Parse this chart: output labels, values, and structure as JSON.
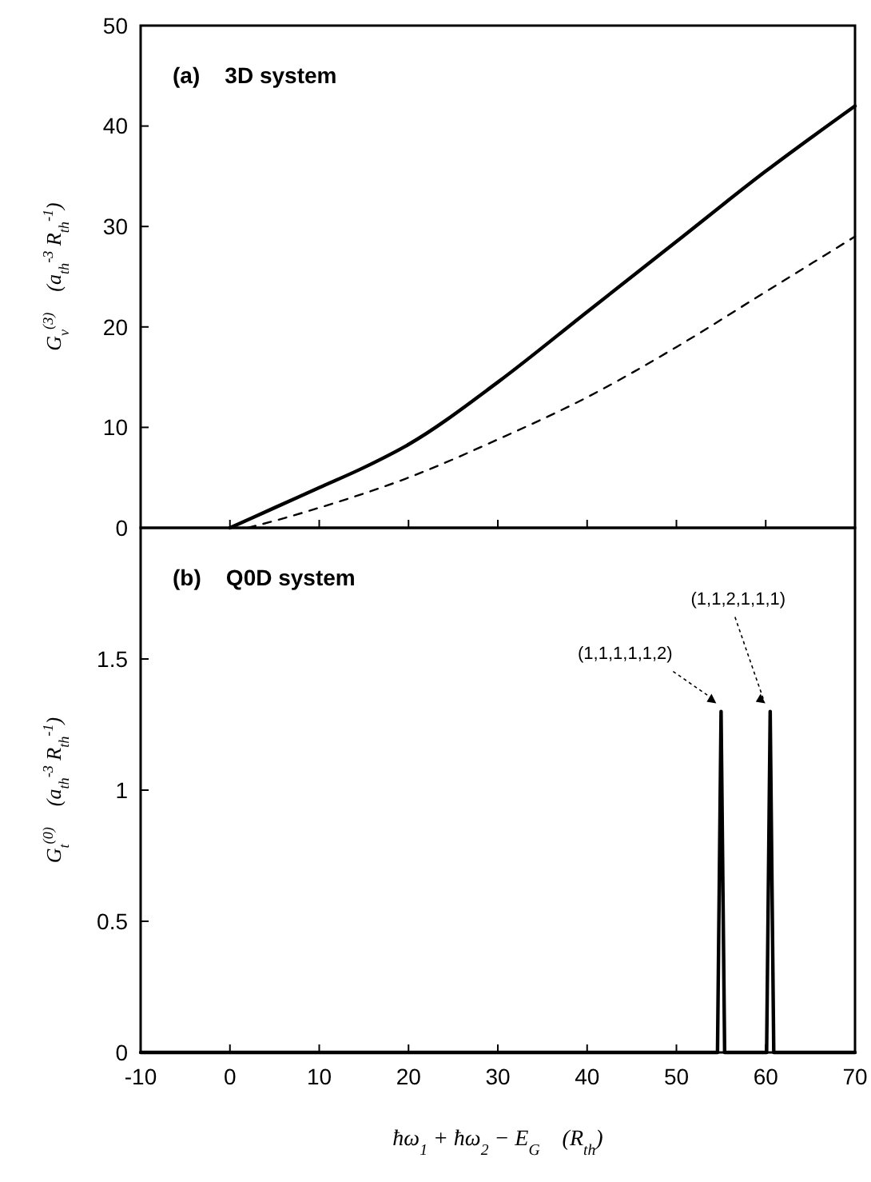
{
  "chart_data": [
    {
      "type": "line",
      "title": "(a)    3D system",
      "ylabel": "G$_{v}$$^{(3)}$    (a$_{th}$$^{-3}$ R$_{th}$$^{-1}$)",
      "xlim": [
        -10,
        70
      ],
      "xticks": [
        -10,
        0,
        10,
        20,
        30,
        40,
        50,
        60,
        70
      ],
      "ylim": [
        0,
        50
      ],
      "yticks": [
        0,
        10,
        20,
        30,
        40,
        50
      ],
      "tick_labels": "y",
      "grid": false,
      "series": [
        {
          "color": "#000000",
          "line_style": "solid",
          "x": [
            0,
            5,
            10,
            15,
            20,
            30,
            40,
            50,
            60,
            70
          ],
          "values": [
            0,
            2,
            4,
            6,
            8.3,
            14.5,
            21.5,
            28.5,
            35.5,
            42
          ]
        },
        {
          "color": "#000000",
          "line_style": "dashed",
          "x": [
            2,
            5,
            10,
            20,
            30,
            40,
            50,
            60,
            70
          ],
          "values": [
            0,
            0.7,
            2,
            5,
            8.8,
            13,
            18,
            23.5,
            29
          ]
        }
      ]
    },
    {
      "type": "line",
      "title": "(b)    Q0D system",
      "ylabel": "G$_{t}$$^{(0)}$    (a$_{th}$$^{-3}$ R$_{th}$$^{-1}$)",
      "xlabel": "ħω$_{1}$ + ħω$_{2}$ − E$_{G}$    (R$_{th}$)",
      "xlim": [
        -10,
        70
      ],
      "xticks": [
        -10,
        0,
        10,
        20,
        30,
        40,
        50,
        60,
        70
      ],
      "ylim": [
        0,
        2
      ],
      "yticks": [
        0,
        0.5,
        1,
        1.5
      ],
      "grid": false,
      "series": [
        {
          "color": "#000000",
          "line_style": "solid",
          "x": [
            -10,
            54.6,
            55,
            55.4,
            60.1,
            60.5,
            60.9,
            70
          ],
          "values": [
            0,
            0,
            1.3,
            0,
            0,
            1.3,
            0,
            0
          ]
        }
      ],
      "annotations": [
        {
          "text": "(1,1,1,1,1,2)",
          "x": 55,
          "y": 1.3
        },
        {
          "text": "(1,1,2,1,1,1)",
          "x": 60.5,
          "y": 1.3
        }
      ]
    }
  ]
}
